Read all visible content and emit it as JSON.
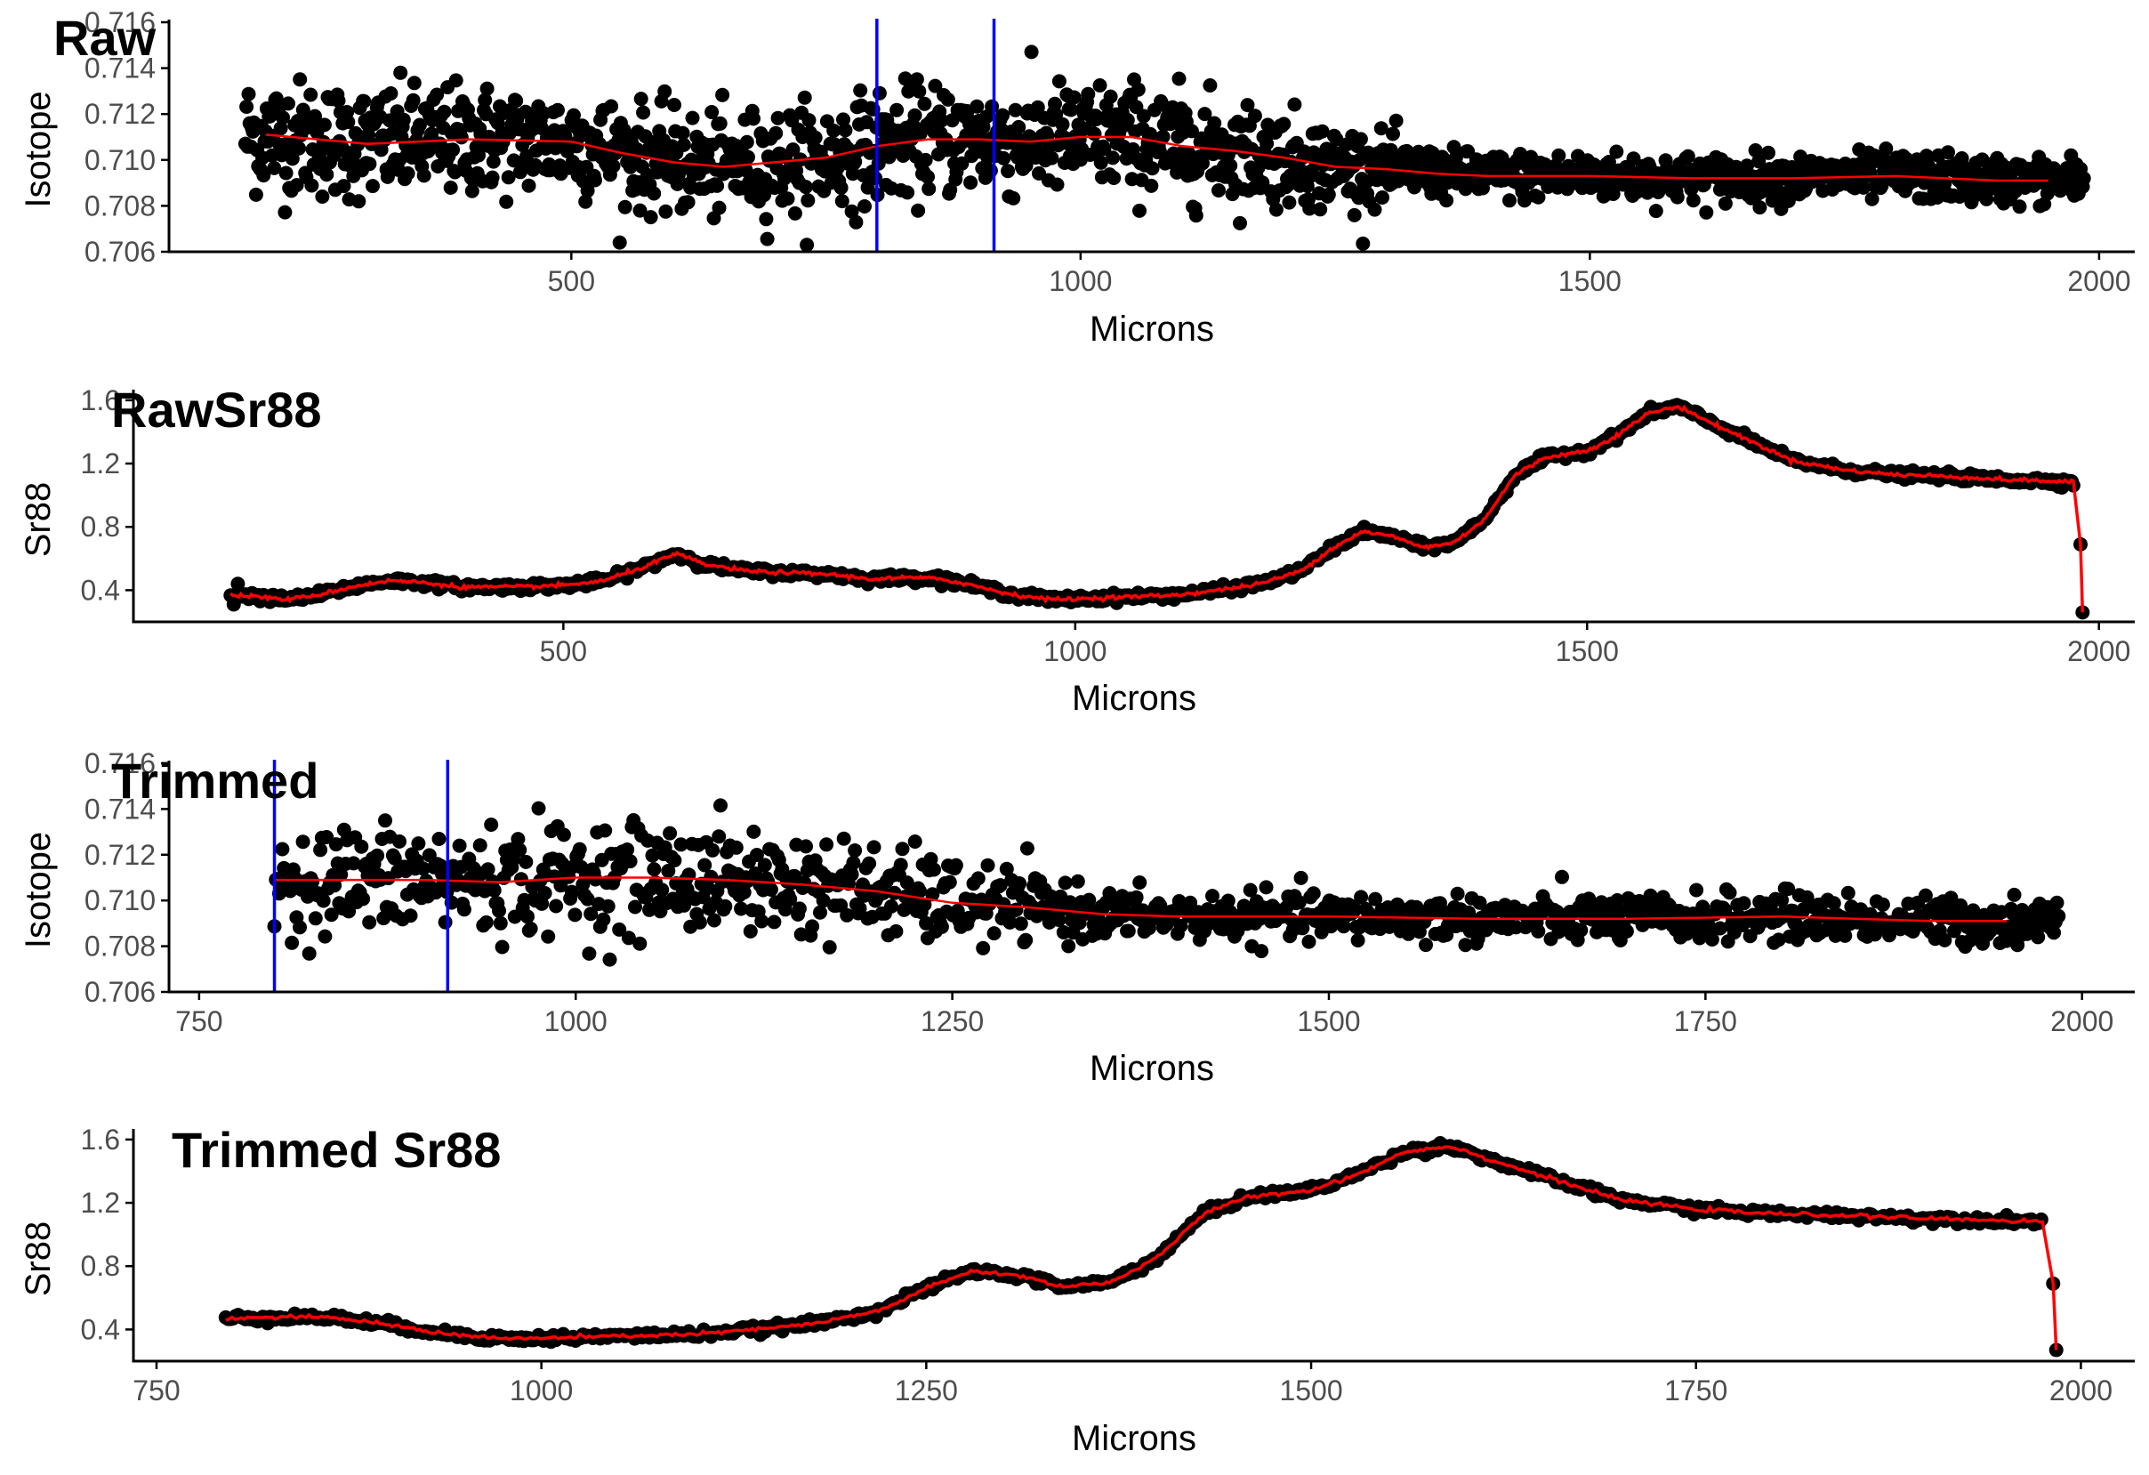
{
  "colors": {
    "points": "#000000",
    "smooth": "#ff0000",
    "marker": "#0000ff",
    "axis": "#000000"
  },
  "chart_data": [
    {
      "type": "scatter",
      "title": "Raw",
      "xlabel": "Microns",
      "ylabel": "Isotope",
      "xlim": [
        105,
        2035
      ],
      "ylim": [
        0.706,
        0.716
      ],
      "xticks": [
        500,
        1000,
        1500,
        2000
      ],
      "yticks": [
        0.706,
        0.708,
        0.71,
        0.712,
        0.714,
        0.716
      ],
      "ytick_labels": [
        "0.706",
        "0.708",
        "0.710",
        "0.712",
        "0.714",
        "0.716"
      ],
      "vlines": [
        800,
        915
      ],
      "grid": false,
      "legend": "none",
      "x_range": [
        180,
        1985
      ],
      "smooth": {
        "x": [
          200,
          300,
          400,
          500,
          550,
          600,
          650,
          700,
          750,
          800,
          850,
          900,
          950,
          1000,
          1050,
          1100,
          1150,
          1200,
          1250,
          1300,
          1350,
          1400,
          1500,
          1600,
          1700,
          1800,
          1900,
          1950
        ],
        "y": [
          0.7111,
          0.7107,
          0.7109,
          0.7108,
          0.7103,
          0.7099,
          0.7097,
          0.7099,
          0.7101,
          0.7106,
          0.7109,
          0.7109,
          0.7108,
          0.711,
          0.711,
          0.7106,
          0.7104,
          0.7101,
          0.7097,
          0.7096,
          0.7094,
          0.7093,
          0.7093,
          0.7092,
          0.7092,
          0.7093,
          0.7091,
          0.7091
        ]
      },
      "noise": {
        "x": [
          180,
          600,
          800,
          1100,
          1250,
          1350,
          1985
        ],
        "sd": [
          0.0015,
          0.0013,
          0.0014,
          0.0014,
          0.0011,
          0.0006,
          0.0006
        ]
      }
    },
    {
      "type": "scatter",
      "title": "RawSr88",
      "xlabel": "Microns",
      "ylabel": "Sr88",
      "xlim": [
        80,
        2035
      ],
      "ylim": [
        0.2,
        1.65
      ],
      "xticks": [
        500,
        1000,
        1500,
        2000
      ],
      "yticks": [
        0.4,
        0.8,
        1.2,
        1.6
      ],
      "ytick_labels": [
        "0.4",
        "0.8",
        "1.2",
        "1.6"
      ],
      "grid": false,
      "legend": "none",
      "x_range": [
        175,
        1975
      ],
      "smooth": {
        "x": [
          175,
          200,
          230,
          260,
          300,
          330,
          360,
          400,
          450,
          500,
          540,
          580,
          610,
          640,
          680,
          720,
          760,
          800,
          840,
          870,
          900,
          940,
          980,
          1020,
          1060,
          1100,
          1140,
          1180,
          1220,
          1250,
          1280,
          1310,
          1340,
          1370,
          1400,
          1430,
          1460,
          1500,
          1530,
          1560,
          1590,
          1620,
          1660,
          1700,
          1750,
          1800,
          1850,
          1900,
          1950,
          1975
        ],
        "y": [
          0.37,
          0.36,
          0.34,
          0.37,
          0.43,
          0.46,
          0.45,
          0.42,
          0.42,
          0.43,
          0.46,
          0.55,
          0.63,
          0.56,
          0.52,
          0.51,
          0.5,
          0.47,
          0.48,
          0.47,
          0.43,
          0.37,
          0.34,
          0.35,
          0.36,
          0.37,
          0.4,
          0.44,
          0.52,
          0.66,
          0.77,
          0.74,
          0.67,
          0.7,
          0.85,
          1.13,
          1.24,
          1.28,
          1.38,
          1.52,
          1.56,
          1.46,
          1.34,
          1.22,
          1.16,
          1.13,
          1.12,
          1.1,
          1.09,
          1.08
        ]
      },
      "drop_points": [
        {
          "x": 1982,
          "y": 0.69
        },
        {
          "x": 1984,
          "y": 0.26
        }
      ],
      "extra_points": [
        {
          "x": 178,
          "y": 0.31
        },
        {
          "x": 182,
          "y": 0.44
        }
      ]
    },
    {
      "type": "scatter",
      "title": "Trimmed",
      "xlabel": "Microns",
      "ylabel": "Isotope",
      "xlim": [
        730,
        2035
      ],
      "ylim": [
        0.706,
        0.716
      ],
      "xticks": [
        750,
        1000,
        1250,
        1500,
        1750,
        2000
      ],
      "yticks": [
        0.706,
        0.708,
        0.71,
        0.712,
        0.714,
        0.716
      ],
      "ytick_labels": [
        "0.706",
        "0.708",
        "0.710",
        "0.712",
        "0.714",
        "0.716"
      ],
      "vlines": [
        800,
        915
      ],
      "grid": false,
      "legend": "none",
      "x_range": [
        800,
        1985
      ],
      "smooth": {
        "x": [
          800,
          850,
          900,
          950,
          1000,
          1050,
          1100,
          1150,
          1200,
          1250,
          1300,
          1350,
          1400,
          1500,
          1600,
          1700,
          1800,
          1900,
          1950
        ],
        "y": [
          0.7109,
          0.7109,
          0.7109,
          0.7108,
          0.711,
          0.711,
          0.7109,
          0.7107,
          0.7104,
          0.7099,
          0.7097,
          0.7094,
          0.7093,
          0.7093,
          0.7092,
          0.7092,
          0.7093,
          0.7091,
          0.7091
        ]
      },
      "noise": {
        "x": [
          800,
          1100,
          1250,
          1350,
          1985
        ],
        "sd": [
          0.0014,
          0.0014,
          0.0011,
          0.0006,
          0.0006
        ]
      }
    },
    {
      "type": "scatter",
      "title": "Trimmed Sr88",
      "xlabel": "Microns",
      "ylabel": "Sr88",
      "xlim": [
        735,
        2035
      ],
      "ylim": [
        0.2,
        1.65
      ],
      "xticks": [
        750,
        1000,
        1250,
        1500,
        1750,
        2000
      ],
      "yticks": [
        0.4,
        0.8,
        1.2,
        1.6
      ],
      "ytick_labels": [
        "0.4",
        "0.8",
        "1.2",
        "1.6"
      ],
      "grid": false,
      "legend": "none",
      "x_range": [
        795,
        1975
      ],
      "smooth": {
        "x": [
          795,
          840,
          870,
          900,
          940,
          980,
          1020,
          1060,
          1100,
          1140,
          1180,
          1220,
          1250,
          1280,
          1310,
          1340,
          1370,
          1400,
          1430,
          1460,
          1500,
          1530,
          1560,
          1590,
          1620,
          1660,
          1700,
          1750,
          1800,
          1850,
          1900,
          1950,
          1975
        ],
        "y": [
          0.47,
          0.48,
          0.47,
          0.43,
          0.37,
          0.34,
          0.35,
          0.36,
          0.37,
          0.4,
          0.44,
          0.52,
          0.66,
          0.77,
          0.74,
          0.67,
          0.7,
          0.85,
          1.13,
          1.24,
          1.28,
          1.38,
          1.52,
          1.56,
          1.46,
          1.34,
          1.22,
          1.16,
          1.13,
          1.12,
          1.1,
          1.09,
          1.08
        ]
      },
      "drop_points": [
        {
          "x": 1982,
          "y": 0.69
        },
        {
          "x": 1984,
          "y": 0.27
        }
      ]
    }
  ]
}
